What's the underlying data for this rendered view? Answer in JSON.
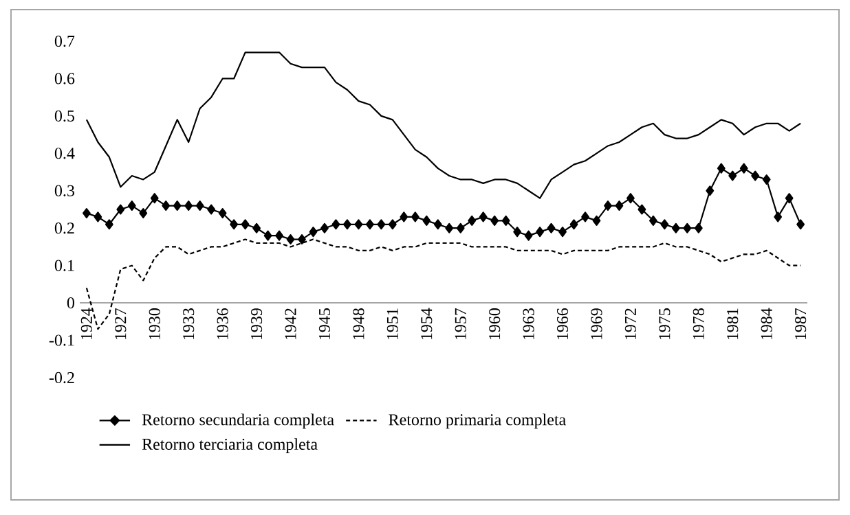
{
  "chart_data": {
    "type": "line",
    "categories": [
      "1924",
      null,
      null,
      "1927",
      null,
      null,
      "1930",
      null,
      null,
      "1933",
      null,
      null,
      "1936",
      null,
      null,
      "1939",
      null,
      null,
      "1942",
      null,
      null,
      "1945",
      null,
      null,
      "1948",
      null,
      null,
      "1951",
      null,
      null,
      "1954",
      null,
      null,
      "1957",
      null,
      null,
      "1960",
      null,
      null,
      "1963",
      null,
      null,
      "1966",
      null,
      null,
      "1969",
      null,
      null,
      "1972",
      null,
      null,
      "1975",
      null,
      null,
      "1978",
      null,
      null,
      "1981",
      null,
      null,
      "1984",
      null,
      null,
      "1987"
    ],
    "series": [
      {
        "name": "Retorno secundaria completa",
        "color": "#000000",
        "marker": "diamond",
        "line_style": "solid",
        "values": [
          0.24,
          0.23,
          0.21,
          0.25,
          0.26,
          0.24,
          0.28,
          0.26,
          0.26,
          0.26,
          0.26,
          0.25,
          0.24,
          0.21,
          0.21,
          0.2,
          0.18,
          0.18,
          0.17,
          0.17,
          0.19,
          0.2,
          0.21,
          0.21,
          0.21,
          0.21,
          0.21,
          0.21,
          0.23,
          0.23,
          0.22,
          0.21,
          0.2,
          0.2,
          0.22,
          0.23,
          0.22,
          0.22,
          0.19,
          0.18,
          0.19,
          0.2,
          0.19,
          0.21,
          0.23,
          0.22,
          0.26,
          0.26,
          0.28,
          0.25,
          0.22,
          0.21,
          0.2,
          0.2,
          0.2,
          0.3,
          0.36,
          0.34,
          0.36,
          0.34,
          0.33,
          0.23,
          0.28,
          0.21
        ]
      },
      {
        "name": "Retorno primaria completa",
        "color": "#000000",
        "marker": "none",
        "line_style": "dashed",
        "values": [
          0.04,
          -0.07,
          -0.03,
          0.09,
          0.1,
          0.06,
          0.12,
          0.15,
          0.15,
          0.13,
          0.14,
          0.15,
          0.15,
          0.16,
          0.17,
          0.16,
          0.16,
          0.16,
          0.15,
          0.16,
          0.17,
          0.16,
          0.15,
          0.15,
          0.14,
          0.14,
          0.15,
          0.14,
          0.15,
          0.15,
          0.16,
          0.16,
          0.16,
          0.16,
          0.15,
          0.15,
          0.15,
          0.15,
          0.14,
          0.14,
          0.14,
          0.14,
          0.13,
          0.14,
          0.14,
          0.14,
          0.14,
          0.15,
          0.15,
          0.15,
          0.15,
          0.16,
          0.15,
          0.15,
          0.14,
          0.13,
          0.11,
          0.12,
          0.13,
          0.13,
          0.14,
          0.12,
          0.1,
          0.1
        ]
      },
      {
        "name": "Retorno terciaria completa",
        "color": "#000000",
        "marker": "none",
        "line_style": "solid",
        "values": [
          0.49,
          0.43,
          0.39,
          0.31,
          0.34,
          0.33,
          0.35,
          0.42,
          0.49,
          0.43,
          0.52,
          0.55,
          0.6,
          0.6,
          0.67,
          0.67,
          0.67,
          0.67,
          0.64,
          0.63,
          0.63,
          0.63,
          0.59,
          0.57,
          0.54,
          0.53,
          0.5,
          0.49,
          0.45,
          0.41,
          0.39,
          0.36,
          0.34,
          0.33,
          0.33,
          0.32,
          0.33,
          0.33,
          0.32,
          0.3,
          0.28,
          0.33,
          0.35,
          0.37,
          0.38,
          0.4,
          0.42,
          0.43,
          0.45,
          0.47,
          0.48,
          0.45,
          0.44,
          0.44,
          0.45,
          0.47,
          0.49,
          0.48,
          0.45,
          0.47,
          0.48,
          0.48,
          0.46,
          0.48
        ]
      }
    ],
    "ylim": [
      -0.2,
      0.7
    ],
    "yticks": [
      -0.2,
      -0.1,
      0,
      0.1,
      0.2,
      0.3,
      0.4,
      0.5,
      0.6,
      0.7
    ],
    "grid": false,
    "legend": "bottom"
  }
}
